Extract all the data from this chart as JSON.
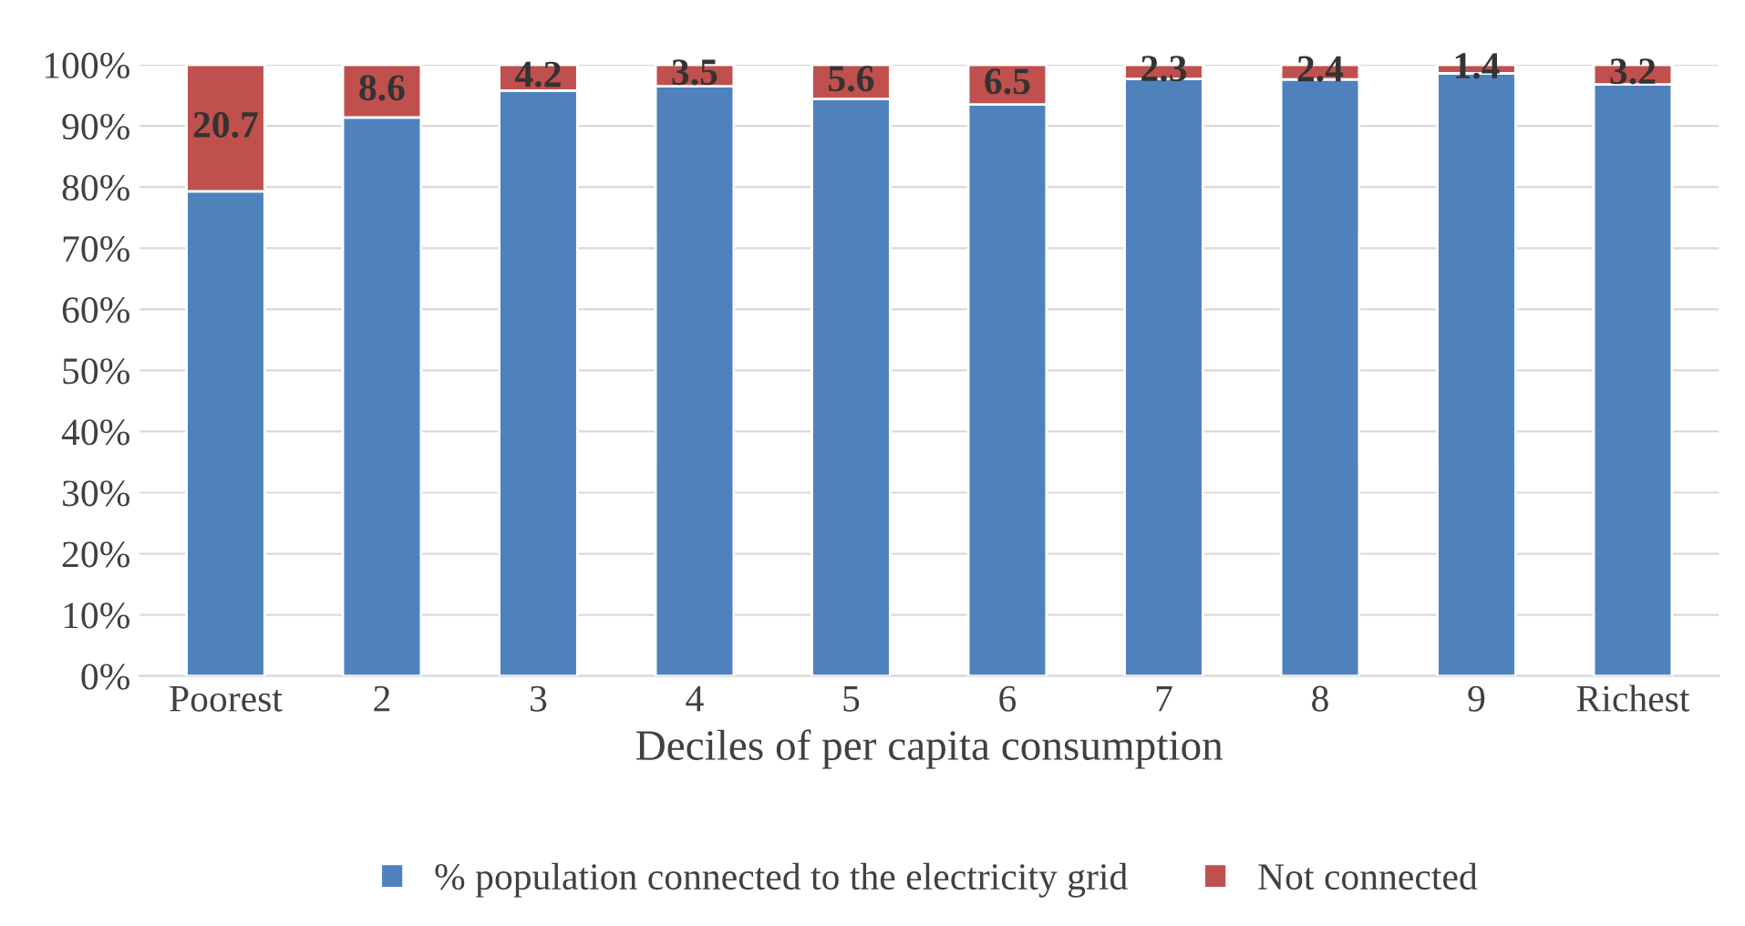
{
  "chart_data": {
    "type": "bar",
    "stacked": true,
    "xlabel": "Deciles of per capita consumption",
    "categories": [
      "Poorest",
      "2",
      "3",
      "4",
      "5",
      "6",
      "7",
      "8",
      "9",
      "Richest"
    ],
    "series": [
      {
        "name": "% population connected to the electricity grid",
        "color": "#4f81bd",
        "values": [
          79.3,
          91.4,
          95.8,
          96.5,
          94.4,
          93.5,
          97.7,
          97.6,
          98.6,
          96.8
        ]
      },
      {
        "name": "Not connected",
        "color": "#c0504d",
        "values": [
          20.7,
          8.6,
          4.2,
          3.5,
          5.6,
          6.5,
          2.3,
          2.4,
          1.4,
          3.2
        ],
        "value_labels": [
          "20.7",
          "8.6",
          "4.2",
          "3.5",
          "5.6",
          "6.5",
          "2.3",
          "2.4",
          "1.4",
          "3.2"
        ]
      }
    ],
    "ylim": [
      0,
      100
    ],
    "yticks": [
      {
        "value": 0,
        "label": "0%"
      },
      {
        "value": 10,
        "label": "10%"
      },
      {
        "value": 20,
        "label": "20%"
      },
      {
        "value": 30,
        "label": "30%"
      },
      {
        "value": 40,
        "label": "40%"
      },
      {
        "value": 50,
        "label": "50%"
      },
      {
        "value": 60,
        "label": "60%"
      },
      {
        "value": 70,
        "label": "70%"
      },
      {
        "value": 80,
        "label": "80%"
      },
      {
        "value": 90,
        "label": "90%"
      },
      {
        "value": 100,
        "label": "100%"
      }
    ],
    "grid": "y",
    "legend": "bottom"
  }
}
